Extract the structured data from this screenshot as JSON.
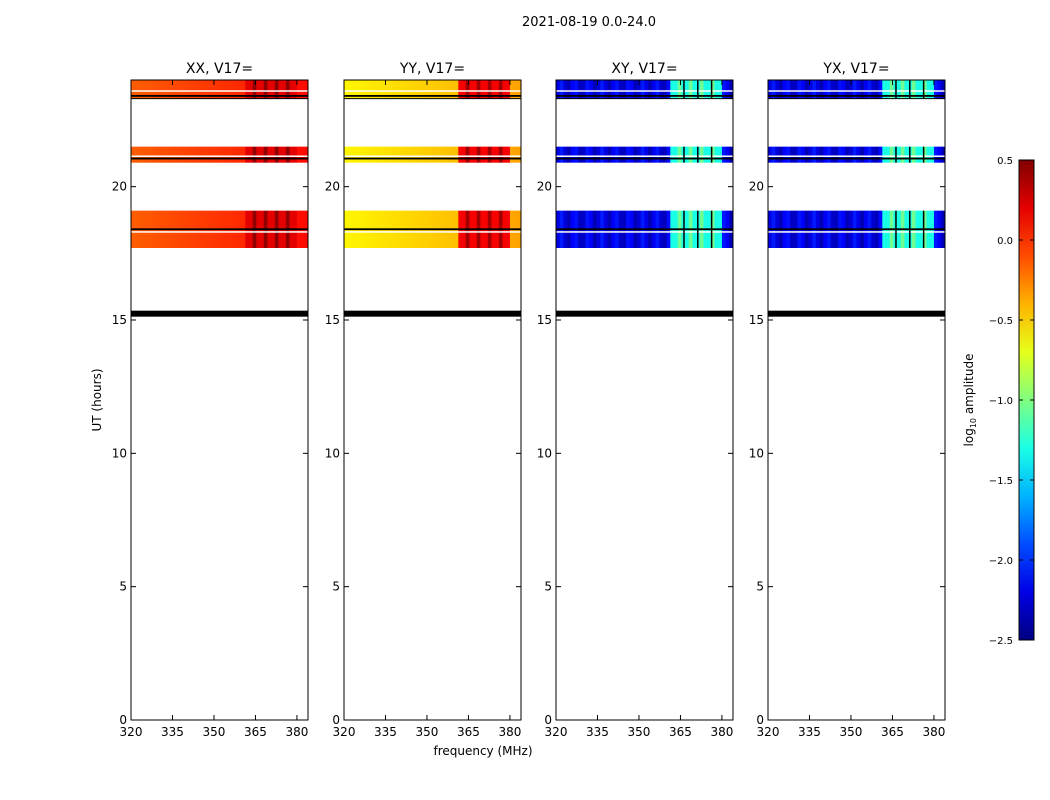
{
  "figure": {
    "suptitle": "2021-08-19 0.0-24.0",
    "xlabel": "frequency (MHz)",
    "ylabel": "UT (hours)"
  },
  "colorbar": {
    "label_main": "log",
    "label_sub": "10",
    "label_tail": " amplitude",
    "range": [
      -2.5,
      0.5
    ],
    "ticks": [
      0.5,
      0.0,
      -0.5,
      -1.0,
      -1.5,
      -2.0,
      -2.5
    ],
    "tick_labels": [
      "0.5",
      "0.0",
      "−0.5",
      "−1.0",
      "−1.5",
      "−2.0",
      "−2.5"
    ],
    "colormap": "jet"
  },
  "chart_data": {
    "type": "heatmap",
    "xlim": [
      320,
      384
    ],
    "ylim": [
      0,
      24
    ],
    "x_ticks": [
      320,
      335,
      350,
      365,
      380
    ],
    "y_ticks": [
      0,
      5,
      10,
      15,
      20
    ],
    "panels": [
      {
        "title": "XX, V17=",
        "base_level": -0.15,
        "rfi_level": 0.3
      },
      {
        "title": "YY, V17=",
        "base_level": -0.6,
        "rfi_level": 0.25
      },
      {
        "title": "XY, V17=",
        "base_level": -2.2,
        "rfi_level": -1.2
      },
      {
        "title": "YX, V17=",
        "base_level": -2.2,
        "rfi_level": -1.2
      }
    ],
    "data_time_ranges": [
      [
        17.7,
        19.1
      ],
      [
        20.9,
        21.5
      ],
      [
        23.3,
        24.0
      ]
    ],
    "rfi_band_mhz": [
      362,
      380
    ],
    "flag_lines_ut": [
      15.2,
      15.3,
      18.4,
      21.05,
      23.4
    ]
  }
}
